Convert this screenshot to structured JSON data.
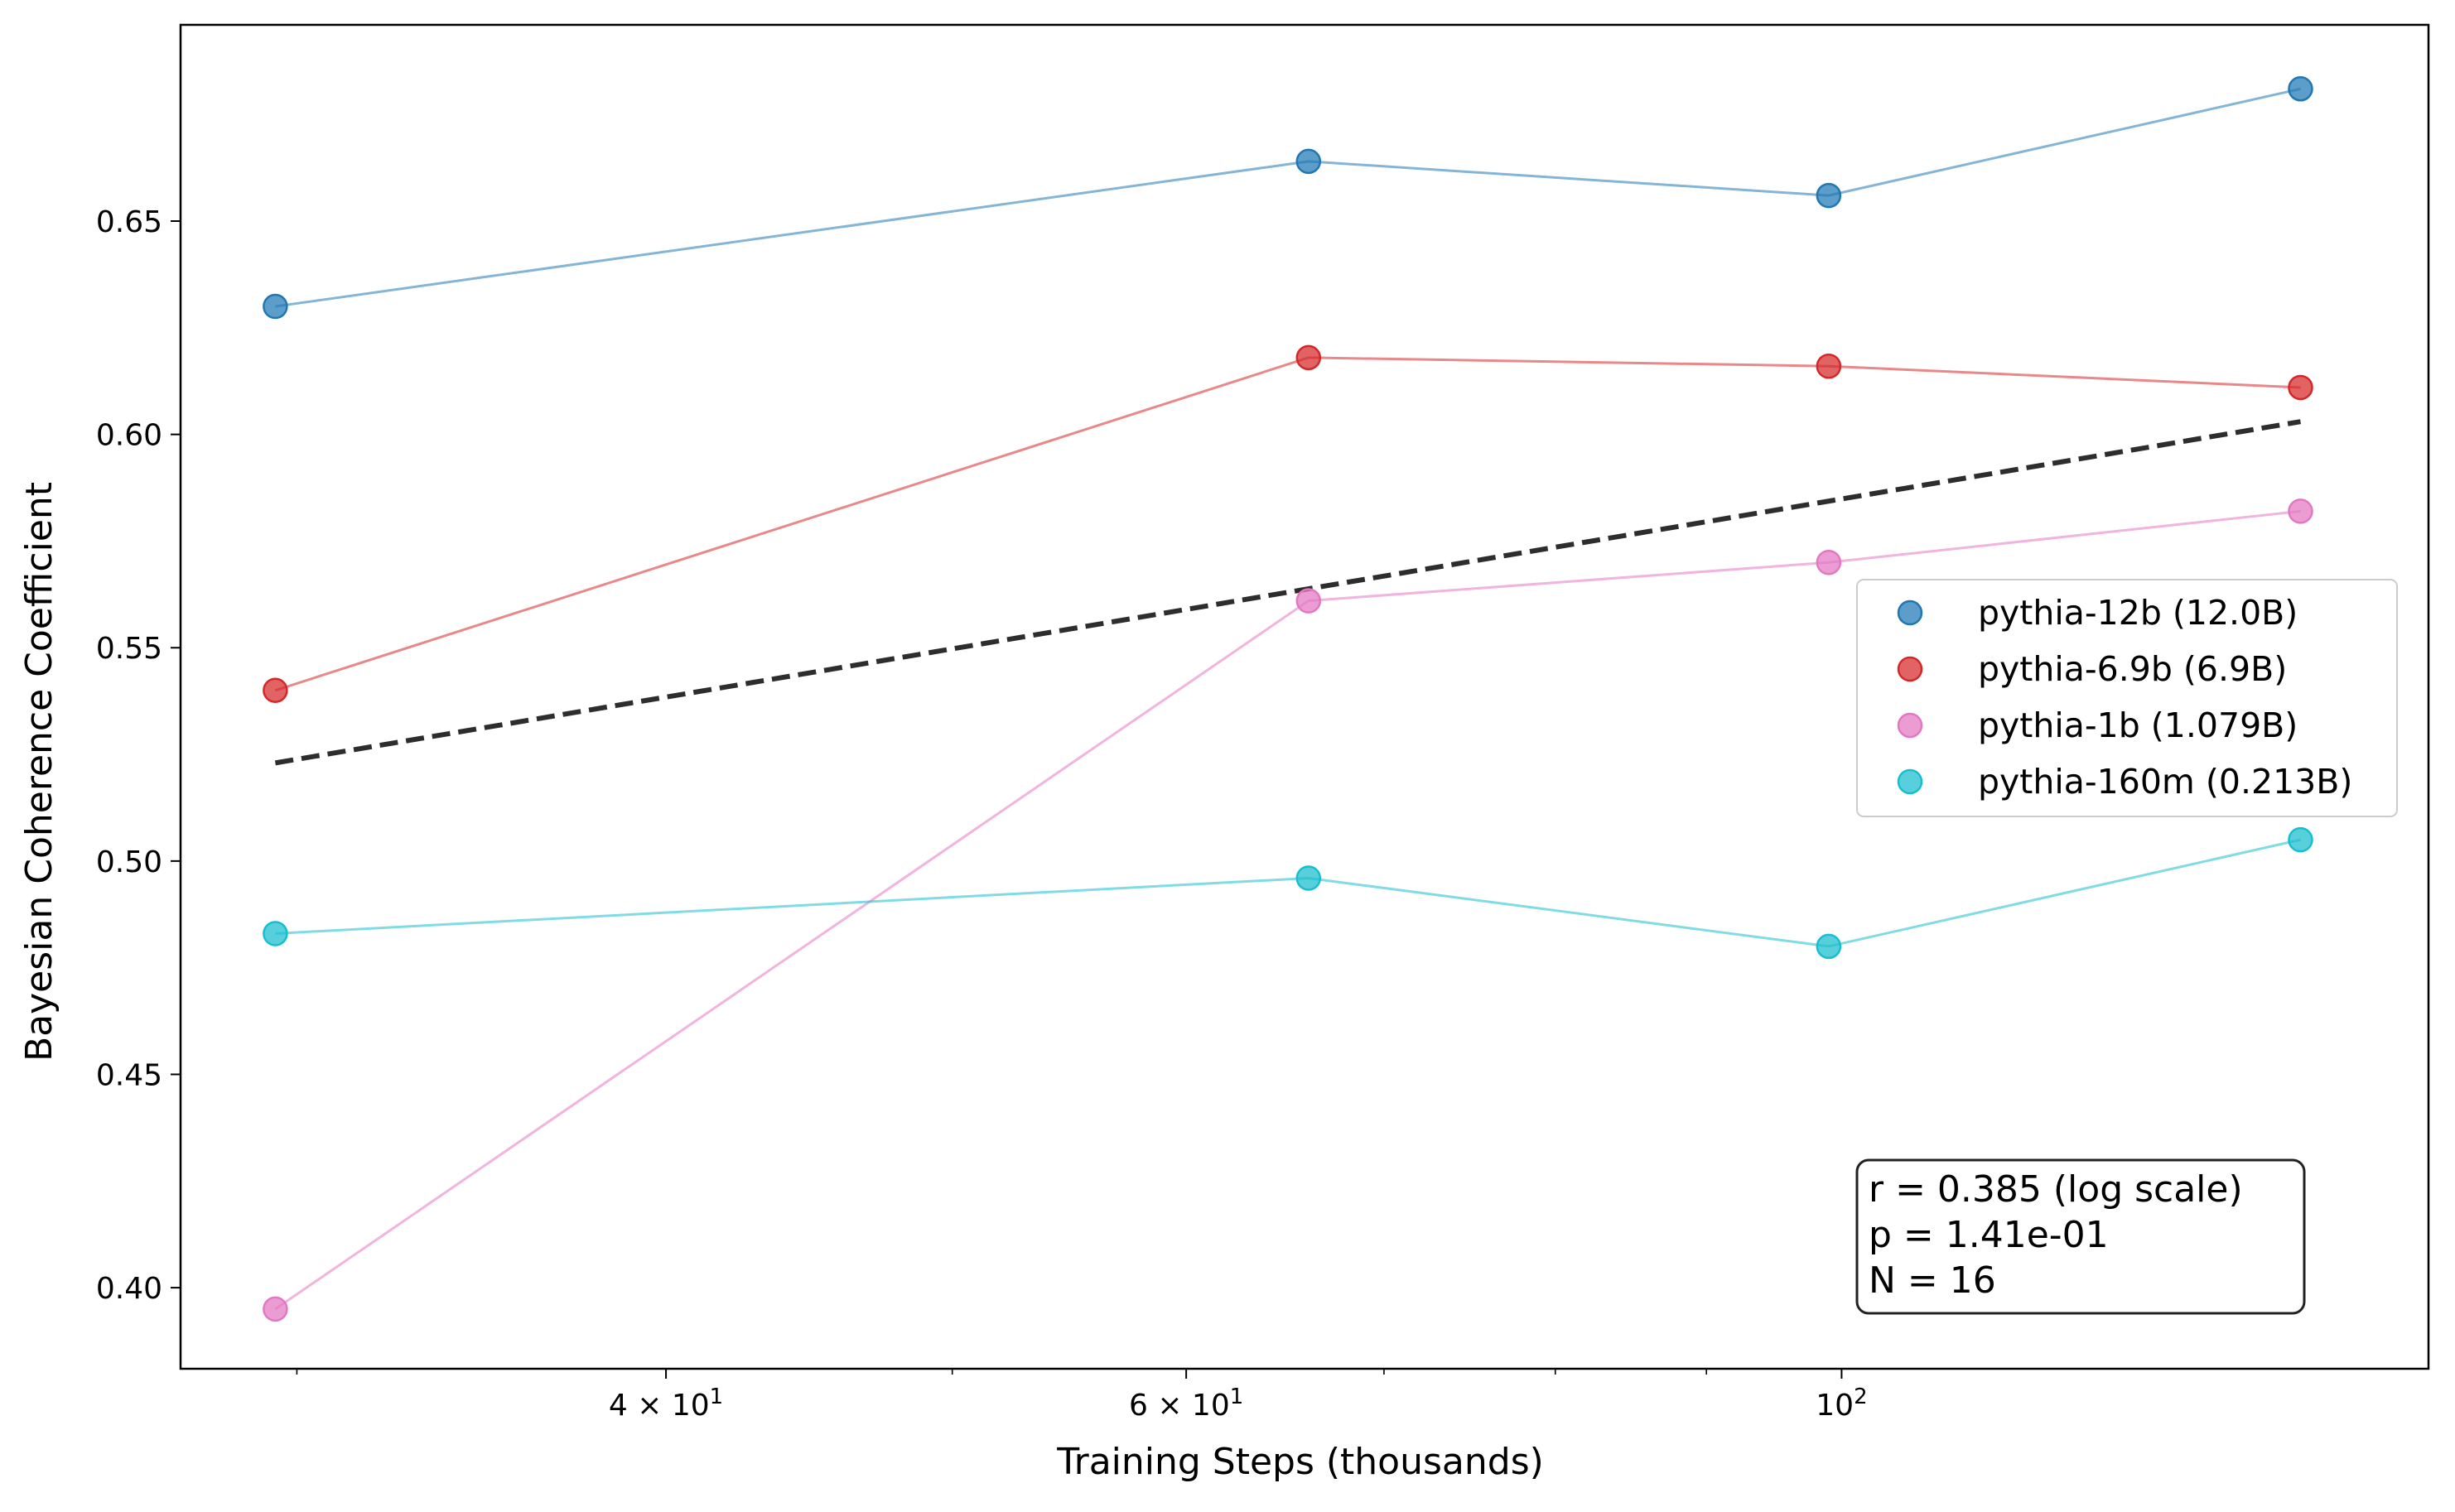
{
  "chart_data": {
    "type": "scatter",
    "title": "",
    "xlabel": "Training Steps (thousands)",
    "ylabel": "Bayesian Coherence Coefficient",
    "xscale": "log",
    "xlim": [
      27.4,
      158
    ],
    "ylim": [
      0.381,
      0.696
    ],
    "grid": false,
    "legend_position": "center-right",
    "x_ticks": [
      {
        "value": 40,
        "label": "4 × 10",
        "sup": "1"
      },
      {
        "value": 60,
        "label": "6 × 10",
        "sup": "1"
      },
      {
        "value": 100,
        "label": "10",
        "sup": "2"
      }
    ],
    "x_minor_ticks": [
      30,
      50,
      70,
      80,
      90
    ],
    "y_ticks": [
      {
        "value": 0.4,
        "label": "0.40"
      },
      {
        "value": 0.45,
        "label": "0.45"
      },
      {
        "value": 0.5,
        "label": "0.50"
      },
      {
        "value": 0.55,
        "label": "0.55"
      },
      {
        "value": 0.6,
        "label": "0.60"
      },
      {
        "value": 0.65,
        "label": "0.65"
      }
    ],
    "x": [
      29.5,
      66,
      99,
      143
    ],
    "series": [
      {
        "name": "pythia-12b (12.0B)",
        "color": "#1f77b4",
        "values": [
          0.63,
          0.664,
          0.656,
          0.681
        ]
      },
      {
        "name": "pythia-6.9b (6.9B)",
        "color": "#d62728",
        "values": [
          0.54,
          0.618,
          0.616,
          0.611
        ]
      },
      {
        "name": "pythia-1b (1.079B)",
        "color": "#e377c2",
        "values": [
          0.395,
          0.561,
          0.57,
          0.582
        ]
      },
      {
        "name": "pythia-160m (0.213B)",
        "color": "#17becf",
        "values": [
          0.483,
          0.496,
          0.48,
          0.505
        ]
      }
    ],
    "trend_line": {
      "color": "#222222",
      "style": "dashed",
      "x": [
        29.5,
        143
      ],
      "y": [
        0.523,
        0.603
      ]
    },
    "annotation": {
      "lines": [
        "r = 0.385 (log scale)",
        "p = 1.41e-01",
        "N = 16"
      ],
      "position": "bottom-right"
    }
  }
}
